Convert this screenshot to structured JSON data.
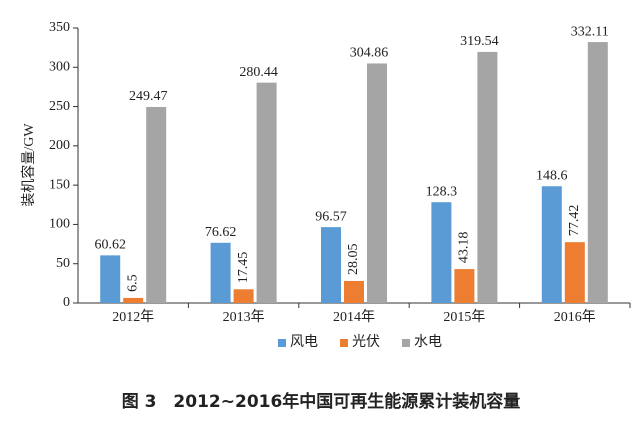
{
  "chart_data": {
    "type": "bar",
    "caption": "图 3　2012~2016年中国可再生能源累计装机容量",
    "y_label": "装机容量/GW",
    "categories": [
      "2012年",
      "2013年",
      "2014年",
      "2015年",
      "2016年"
    ],
    "series": [
      {
        "name": "风电",
        "color": "#5b9bd5",
        "values": [
          60.62,
          76.62,
          96.57,
          128.3,
          148.6
        ]
      },
      {
        "name": "光伏",
        "color": "#ed7d31",
        "values": [
          6.5,
          17.45,
          28.05,
          43.18,
          77.42
        ]
      },
      {
        "name": "水电",
        "color": "#a5a5a5",
        "values": [
          249.47,
          280.44,
          304.86,
          319.54,
          332.11
        ]
      }
    ],
    "ylim": [
      0,
      350
    ],
    "yticks": [
      0,
      50,
      100,
      150,
      200,
      250,
      300,
      350
    ]
  }
}
